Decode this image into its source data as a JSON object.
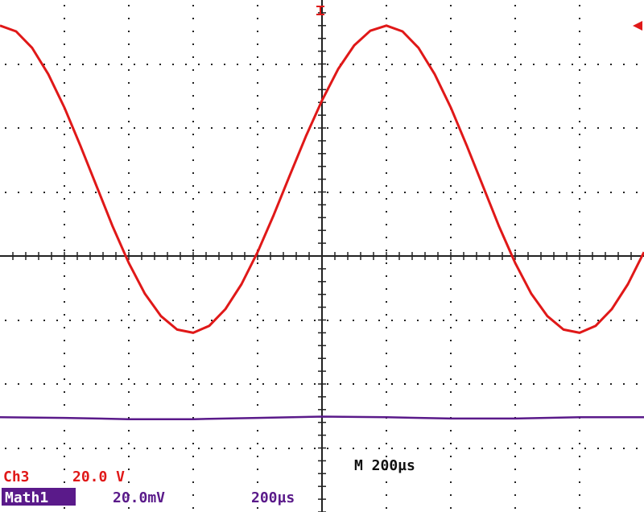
{
  "scope": {
    "timebase_label": "M  200µs",
    "ch3_label": "Ch3",
    "ch3_scale": "20.0 V",
    "math_label": "Math1",
    "math_scale": "20.0mV",
    "math_time": "200µs"
  },
  "colors": {
    "ch3": "#e01818",
    "math": "#5a1a8a",
    "grid": "#222222",
    "text": "#111111"
  },
  "chart_data": {
    "type": "line",
    "title": "",
    "xlabel": "",
    "ylabel": "",
    "grid": true,
    "x_divisions": 10,
    "y_divisions": 8,
    "xlim": [
      0,
      10
    ],
    "ylim": [
      -4,
      4
    ],
    "series": [
      {
        "name": "Ch3",
        "color": "#e01818",
        "x": [
          0,
          0.25,
          0.5,
          0.75,
          1.0,
          1.25,
          1.5,
          1.75,
          2.0,
          2.25,
          2.5,
          2.75,
          3.0,
          3.25,
          3.5,
          3.75,
          4.0,
          4.25,
          4.5,
          4.75,
          5.0,
          5.25,
          5.5,
          5.75,
          6.0,
          6.25,
          6.5,
          6.75,
          7.0,
          7.25,
          7.5,
          7.75,
          8.0,
          8.25,
          8.5,
          8.75,
          9.0,
          9.25,
          9.5,
          9.75,
          10.0
        ],
        "values": [
          3.6,
          3.51,
          3.25,
          2.84,
          2.32,
          1.72,
          1.09,
          0.46,
          -0.11,
          -0.59,
          -0.94,
          -1.15,
          -1.2,
          -1.09,
          -0.83,
          -0.44,
          0.06,
          0.64,
          1.26,
          1.87,
          2.43,
          2.92,
          3.29,
          3.52,
          3.6,
          3.51,
          3.25,
          2.84,
          2.32,
          1.72,
          1.09,
          0.46,
          -0.11,
          -0.59,
          -0.94,
          -1.15,
          -1.2,
          -1.09,
          -0.83,
          -0.44,
          0.06
        ]
      },
      {
        "name": "Math1",
        "color": "#5a1a8a",
        "x": [
          0,
          1,
          2,
          3,
          4,
          5,
          6,
          7,
          8,
          9,
          10
        ],
        "values": [
          -2.52,
          -2.53,
          -2.55,
          -2.55,
          -2.53,
          -2.51,
          -2.52,
          -2.54,
          -2.54,
          -2.52,
          -2.52
        ]
      }
    ]
  }
}
